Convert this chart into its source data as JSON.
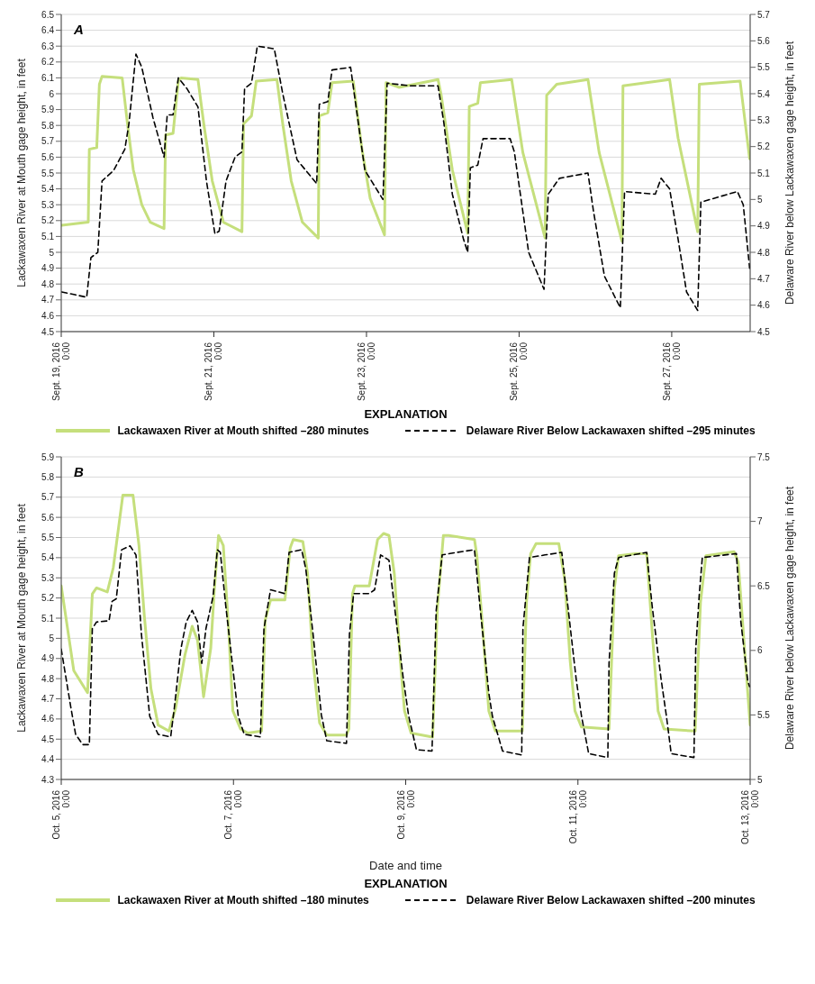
{
  "chart_data": [
    {
      "type": "line",
      "annotations": [
        "A"
      ],
      "ylabel": "Lackawaxen River at Mouth gage height, in feet",
      "y2label": "Delaware River below Lackawaxen gage height, in feet",
      "legend_title": "EXPLANATION",
      "legend": "bottom",
      "grid": "y",
      "xlim": [
        "2016-09-19T00:00",
        "2016-09-28T00:40"
      ],
      "xticks": [
        {
          "value": "2016-09-19T00:00",
          "label": "Sept. 19, 2016\n0:00"
        },
        {
          "value": "2016-09-21T00:00",
          "label": "Sept. 21, 2016\n0:00"
        },
        {
          "value": "2016-09-23T00:00",
          "label": "Sept. 23, 2016\n0:00"
        },
        {
          "value": "2016-09-25T00:00",
          "label": "Sept. 25, 2016\n0:00"
        },
        {
          "value": "2016-09-27T00:00",
          "label": "Sept. 27, 2016\n0:00"
        }
      ],
      "ylim": [
        4.5,
        6.5
      ],
      "yticks": [
        4.5,
        4.6,
        4.7,
        4.8,
        4.9,
        5,
        5.1,
        5.2,
        5.3,
        5.4,
        5.5,
        5.6,
        5.7,
        5.8,
        5.9,
        6,
        6.1,
        6.2,
        6.3,
        6.4,
        6.5
      ],
      "y2lim": [
        4.5,
        5.7
      ],
      "y2ticks": [
        4.5,
        4.6,
        4.7,
        4.8,
        4.9,
        5,
        5.1,
        5.2,
        5.3,
        5.4,
        5.5,
        5.6,
        5.7
      ],
      "series": [
        {
          "name": "Lackawaxen River at Mouth shifted –280 minutes",
          "color": "#c5df7c",
          "line_style": "solid",
          "x": [
            "2016-09-19T00:10",
            "2016-09-19T08:30",
            "2016-09-19T08:50",
            "2016-09-19T11:10",
            "2016-09-19T12:00",
            "2016-09-19T12:50",
            "2016-09-19T19:10",
            "2016-09-19T20:50",
            "2016-09-19T22:40",
            "2016-09-20T01:20",
            "2016-09-20T04:00",
            "2016-09-20T08:20",
            "2016-09-20T08:50",
            "2016-09-20T11:10",
            "2016-09-20T12:50",
            "2016-09-20T13:40",
            "2016-09-20T19:00",
            "2016-09-20T20:50",
            "2016-09-20T23:30",
            "2016-09-21T03:00",
            "2016-09-21T08:50",
            "2016-09-21T09:20",
            "2016-09-21T11:50",
            "2016-09-21T13:20",
            "2016-09-21T19:50",
            "2016-09-21T21:40",
            "2016-09-22T00:20",
            "2016-09-22T03:50",
            "2016-09-22T08:50",
            "2016-09-22T09:10",
            "2016-09-22T11:50",
            "2016-09-22T13:10",
            "2016-09-22T19:50",
            "2016-09-22T22:30",
            "2016-09-23T01:10",
            "2016-09-23T05:40",
            "2016-09-23T06:10",
            "2016-09-23T10:10",
            "2016-09-23T22:30",
            "2016-09-23T23:30",
            "2016-09-24T03:00",
            "2016-09-24T07:50",
            "2016-09-24T08:20",
            "2016-09-24T11:00",
            "2016-09-24T11:50",
            "2016-09-24T21:40",
            "2016-09-25T01:10",
            "2016-09-25T08:10",
            "2016-09-25T08:40",
            "2016-09-25T11:50",
            "2016-09-25T21:40",
            "2016-09-26T01:10",
            "2016-09-26T08:20",
            "2016-09-26T08:40",
            "2016-09-26T23:20",
            "2016-09-27T02:00",
            "2016-09-27T08:10",
            "2016-09-27T08:40",
            "2016-09-27T21:30",
            "2016-09-28T00:30"
          ],
          "values": [
            5.17,
            5.19,
            5.65,
            5.66,
            6.06,
            6.11,
            6.1,
            5.81,
            5.52,
            5.3,
            5.19,
            5.15,
            5.74,
            5.75,
            6.08,
            6.1,
            6.09,
            5.81,
            5.45,
            5.19,
            5.13,
            5.81,
            5.86,
            6.08,
            6.09,
            5.81,
            5.45,
            5.19,
            5.09,
            5.86,
            5.88,
            6.07,
            6.08,
            5.66,
            5.34,
            5.11,
            6.07,
            6.04,
            6.09,
            5.99,
            5.52,
            5.12,
            5.92,
            5.94,
            6.07,
            6.09,
            5.63,
            5.09,
            5.99,
            6.06,
            6.09,
            5.63,
            5.07,
            6.05,
            6.09,
            5.72,
            5.13,
            6.06,
            6.08,
            5.59
          ]
        },
        {
          "name": "Delaware River Below Lackawaxen shifted –295 minutes",
          "color": "#000000",
          "line_style": "dashed",
          "axis": "y2",
          "x": [
            "2016-09-19T00:10",
            "2016-09-19T08:00",
            "2016-09-19T09:20",
            "2016-09-19T11:30",
            "2016-09-19T12:50",
            "2016-09-19T16:30",
            "2016-09-19T20:00",
            "2016-09-19T21:20",
            "2016-09-19T23:30",
            "2016-09-20T01:20",
            "2016-09-20T04:50",
            "2016-09-20T08:20",
            "2016-09-20T09:20",
            "2016-09-20T11:10",
            "2016-09-20T12:50",
            "2016-09-20T15:30",
            "2016-09-20T19:00",
            "2016-09-20T21:40",
            "2016-09-21T00:20",
            "2016-09-21T01:40",
            "2016-09-21T03:50",
            "2016-09-21T06:40",
            "2016-09-21T08:50",
            "2016-09-21T09:40",
            "2016-09-21T11:50",
            "2016-09-21T13:40",
            "2016-09-21T19:00",
            "2016-09-21T21:40",
            "2016-09-22T02:10",
            "2016-09-22T08:20",
            "2016-09-22T09:10",
            "2016-09-22T11:50",
            "2016-09-22T13:10",
            "2016-09-22T19:00",
            "2016-09-22T23:30",
            "2016-09-23T05:10",
            "2016-09-23T06:30",
            "2016-09-23T13:40",
            "2016-09-23T22:30",
            "2016-09-24T00:20",
            "2016-09-24T03:00",
            "2016-09-24T06:30",
            "2016-09-24T07:50",
            "2016-09-24T08:40",
            "2016-09-24T11:00",
            "2016-09-24T12:40",
            "2016-09-24T21:10",
            "2016-09-24T22:30",
            "2016-09-25T03:00",
            "2016-09-25T07:50",
            "2016-09-25T09:10",
            "2016-09-25T12:40",
            "2016-09-25T21:40",
            "2016-09-25T23:20",
            "2016-09-26T02:50",
            "2016-09-26T07:50",
            "2016-09-26T09:10",
            "2016-09-26T18:50",
            "2016-09-26T20:40",
            "2016-09-26T23:20",
            "2016-09-27T02:00",
            "2016-09-27T04:40",
            "2016-09-27T08:10",
            "2016-09-27T09:10",
            "2016-09-27T20:40",
            "2016-09-27T22:30",
            "2016-09-28T00:30"
          ],
          "values": [
            4.65,
            4.63,
            4.78,
            4.8,
            5.07,
            5.11,
            5.19,
            5.29,
            5.55,
            5.5,
            5.31,
            5.16,
            5.32,
            5.32,
            5.46,
            5.42,
            5.35,
            5.07,
            4.87,
            4.88,
            5.07,
            5.16,
            5.18,
            5.42,
            5.44,
            5.58,
            5.57,
            5.4,
            5.15,
            5.06,
            5.36,
            5.37,
            5.49,
            5.5,
            5.11,
            5,
            5.44,
            5.43,
            5.43,
            5.29,
            5.02,
            4.85,
            4.8,
            5.12,
            5.13,
            5.23,
            5.23,
            5.18,
            4.8,
            4.66,
            5.02,
            5.08,
            5.1,
            4.96,
            4.71,
            4.59,
            5.03,
            5.02,
            5.08,
            5.04,
            4.85,
            4.65,
            4.58,
            4.99,
            5.03,
            4.98,
            4.74
          ]
        }
      ]
    },
    {
      "type": "line",
      "annotations": [
        "B"
      ],
      "xlabel": "Date and time",
      "ylabel": "Lackawaxen River at Mouth gage height, in feet",
      "y2label": "Delaware River below Lackawaxen gage height, in feet",
      "legend_title": "EXPLANATION",
      "legend": "bottom",
      "grid": "y",
      "xlim": [
        "2016-10-05T00:00",
        "2016-10-13T00:00"
      ],
      "xticks": [
        {
          "value": "2016-10-05T00:00",
          "label": "Oct. 5, 2016\n0:00"
        },
        {
          "value": "2016-10-07T00:00",
          "label": "Oct. 7, 2016\n0:00"
        },
        {
          "value": "2016-10-09T00:00",
          "label": "Oct. 9, 2016\n0:00"
        },
        {
          "value": "2016-10-11T00:00",
          "label": "Oct. 11, 2016\n0:00"
        },
        {
          "value": "2016-10-13T00:00",
          "label": "Oct. 13, 2016\n0:00"
        }
      ],
      "ylim": [
        4.3,
        5.9
      ],
      "yticks": [
        4.3,
        4.4,
        4.5,
        4.6,
        4.7,
        4.8,
        4.9,
        5,
        5.1,
        5.2,
        5.3,
        5.4,
        5.5,
        5.6,
        5.7,
        5.8,
        5.9
      ],
      "y2lim": [
        5,
        7.5
      ],
      "y2ticks": [
        5,
        5.5,
        6,
        6.5,
        7,
        7.5
      ],
      "series": [
        {
          "name": "Lackawaxen River at Mouth shifted –180 minutes",
          "color": "#c5df7c",
          "line_style": "solid",
          "x": [
            "2016-10-05T00:00",
            "2016-10-05T03:30",
            "2016-10-05T07:20",
            "2016-10-05T08:40",
            "2016-10-05T09:50",
            "2016-10-05T12:50",
            "2016-10-05T14:30",
            "2016-10-05T17:10",
            "2016-10-05T20:00",
            "2016-10-05T21:40",
            "2016-10-05T23:10",
            "2016-10-06T01:00",
            "2016-10-06T03:00",
            "2016-10-06T06:00",
            "2016-10-06T07:50",
            "2016-10-06T10:30",
            "2016-10-06T12:30",
            "2016-10-06T14:00",
            "2016-10-06T15:40",
            "2016-10-06T17:40",
            "2016-10-06T18:40",
            "2016-10-06T19:50",
            "2016-10-06T21:10",
            "2016-10-06T22:40",
            "2016-10-06T23:50",
            "2016-10-07T02:00",
            "2016-10-07T04:00",
            "2016-10-07T07:50",
            "2016-10-07T08:50",
            "2016-10-07T10:20",
            "2016-10-07T14:20",
            "2016-10-07T15:50",
            "2016-10-07T16:40",
            "2016-10-07T19:20",
            "2016-10-07T20:40",
            "2016-10-07T22:10",
            "2016-10-08T00:00",
            "2016-10-08T02:00",
            "2016-10-08T07:30",
            "2016-10-08T08:10",
            "2016-10-08T09:10",
            "2016-10-08T09:50",
            "2016-10-08T13:50",
            "2016-10-08T16:10",
            "2016-10-08T17:50",
            "2016-10-08T19:20",
            "2016-10-08T20:50",
            "2016-10-08T22:30",
            "2016-10-08T23:40",
            "2016-10-09T01:30",
            "2016-10-09T07:30",
            "2016-10-09T08:50",
            "2016-10-09T10:30",
            "2016-10-09T12:00",
            "2016-10-09T19:10",
            "2016-10-09T19:50",
            "2016-10-09T21:30",
            "2016-10-09T23:10",
            "2016-10-10T01:00",
            "2016-10-10T08:30",
            "2016-10-10T09:40",
            "2016-10-10T10:50",
            "2016-10-10T12:20",
            "2016-10-10T18:40",
            "2016-10-10T20:20",
            "2016-10-10T21:50",
            "2016-10-10T23:10",
            "2016-10-11T01:00",
            "2016-10-11T08:40",
            "2016-10-11T10:10",
            "2016-10-11T11:20",
            "2016-10-11T16:00",
            "2016-10-11T19:10",
            "2016-10-11T20:40",
            "2016-10-11T22:20",
            "2016-10-12T00:00",
            "2016-10-12T08:40",
            "2016-10-12T10:10",
            "2016-10-12T11:40",
            "2016-10-12T19:30",
            "2016-10-12T20:40",
            "2016-10-12T22:40",
            "2016-10-13T00:00"
          ],
          "values": [
            5.26,
            4.84,
            4.73,
            5.22,
            5.25,
            5.23,
            5.35,
            5.71,
            5.71,
            5.46,
            5.11,
            4.75,
            4.57,
            4.54,
            4.65,
            4.92,
            5.06,
            4.99,
            4.71,
            4.95,
            5.24,
            5.51,
            5.46,
            5.04,
            4.64,
            4.55,
            4.53,
            4.54,
            5.09,
            5.19,
            5.19,
            5.45,
            5.49,
            5.48,
            5.32,
            4.89,
            4.58,
            4.52,
            4.52,
            4.55,
            5.22,
            5.26,
            5.26,
            5.49,
            5.52,
            5.51,
            5.32,
            4.89,
            4.64,
            4.53,
            4.51,
            5.15,
            5.51,
            5.51,
            5.49,
            5.41,
            5.04,
            4.64,
            4.54,
            4.54,
            5.18,
            5.42,
            5.47,
            5.47,
            5.29,
            4.89,
            4.64,
            4.56,
            4.55,
            5.25,
            5.41,
            5.42,
            5.42,
            5.04,
            4.64,
            4.55,
            4.54,
            5.18,
            5.41,
            5.43,
            5.38,
            4.89,
            4.57
          ]
        },
        {
          "name": "Delaware River Below Lackawaxen shifted –200 minutes",
          "color": "#000000",
          "line_style": "dashed",
          "axis": "y2",
          "x": [
            "2016-10-05T00:00",
            "2016-10-05T02:40",
            "2016-10-05T04:00",
            "2016-10-05T06:00",
            "2016-10-05T07:50",
            "2016-10-05T08:40",
            "2016-10-05T09:50",
            "2016-10-05T13:20",
            "2016-10-05T14:10",
            "2016-10-05T15:20",
            "2016-10-05T16:50",
            "2016-10-05T19:10",
            "2016-10-05T20:50",
            "2016-10-05T22:20",
            "2016-10-06T00:40",
            "2016-10-06T03:00",
            "2016-10-06T06:30",
            "2016-10-06T07:30",
            "2016-10-06T09:20",
            "2016-10-06T10:50",
            "2016-10-06T12:30",
            "2016-10-06T14:00",
            "2016-10-06T15:10",
            "2016-10-06T16:20",
            "2016-10-06T18:20",
            "2016-10-06T19:30",
            "2016-10-06T20:20",
            "2016-10-06T21:50",
            "2016-10-07T00:10",
            "2016-10-07T01:20",
            "2016-10-07T03:00",
            "2016-10-07T07:30",
            "2016-10-07T08:30",
            "2016-10-07T10:20",
            "2016-10-07T14:20",
            "2016-10-07T15:30",
            "2016-10-07T19:00",
            "2016-10-07T20:10",
            "2016-10-07T22:10",
            "2016-10-08T00:30",
            "2016-10-08T02:00",
            "2016-10-08T07:30",
            "2016-10-08T08:20",
            "2016-10-08T09:30",
            "2016-10-08T13:50",
            "2016-10-08T15:20",
            "2016-10-08T17:00",
            "2016-10-08T19:20",
            "2016-10-08T20:50",
            "2016-10-08T23:20",
            "2016-10-09T00:50",
            "2016-10-09T03:00",
            "2016-10-09T07:20",
            "2016-10-09T08:30",
            "2016-10-09T10:10",
            "2016-10-09T14:20",
            "2016-10-09T19:10",
            "2016-10-09T20:40",
            "2016-10-09T23:10",
            "2016-10-10T00:10",
            "2016-10-10T03:00",
            "2016-10-10T08:20",
            "2016-10-10T08:40",
            "2016-10-10T10:30",
            "2016-10-10T14:50",
            "2016-10-10T19:30",
            "2016-10-10T21:10",
            "2016-10-10T23:30",
            "2016-10-11T01:00",
            "2016-10-11T03:00",
            "2016-10-11T08:20",
            "2016-10-11T08:40",
            "2016-10-11T10:10",
            "2016-10-11T11:20",
            "2016-10-11T19:10",
            "2016-10-11T20:40",
            "2016-10-11T23:10",
            "2016-10-12T00:40",
            "2016-10-12T02:00",
            "2016-10-12T08:20",
            "2016-10-12T08:50",
            "2016-10-12T09:50",
            "2016-10-12T10:40",
            "2016-10-12T20:10",
            "2016-10-12T21:20",
            "2016-10-12T23:20",
            "2016-10-12T23:50"
          ],
          "values": [
            6.01,
            5.56,
            5.35,
            5.27,
            5.27,
            6.17,
            6.22,
            6.23,
            6.38,
            6.4,
            6.78,
            6.81,
            6.74,
            6.13,
            5.49,
            5.35,
            5.33,
            5.55,
            6.01,
            6.22,
            6.31,
            6.22,
            5.9,
            6.17,
            6.42,
            6.78,
            6.76,
            6.35,
            5.78,
            5.49,
            5.35,
            5.33,
            6.17,
            6.47,
            6.44,
            6.76,
            6.78,
            6.63,
            6.13,
            5.5,
            5.3,
            5.28,
            6.13,
            6.44,
            6.44,
            6.47,
            6.74,
            6.7,
            6.35,
            5.78,
            5.49,
            5.23,
            5.22,
            6.31,
            6.74,
            6.76,
            6.78,
            6.35,
            5.67,
            5.49,
            5.22,
            5.19,
            6.17,
            6.72,
            6.74,
            6.76,
            6.35,
            5.78,
            5.49,
            5.2,
            5.17,
            5.9,
            6.6,
            6.72,
            6.76,
            6.35,
            5.78,
            5.49,
            5.2,
            5.17,
            6.01,
            6.44,
            6.72,
            6.75,
            6.24,
            5.76,
            5.72
          ]
        }
      ]
    }
  ]
}
